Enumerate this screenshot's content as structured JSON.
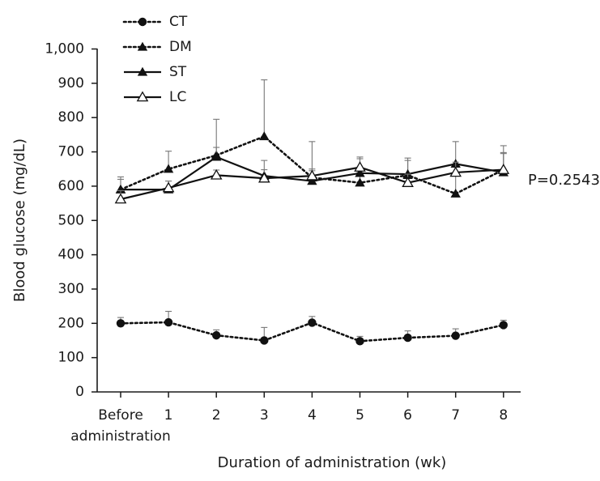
{
  "chart_data": {
    "type": "line",
    "title": "",
    "xlabel": "Duration of administration (wk)",
    "ylabel": "Blood glucose (mg/dL)",
    "ylim": [
      0,
      1000
    ],
    "yticks": [
      0,
      100,
      200,
      300,
      400,
      500,
      600,
      700,
      800,
      900,
      1000
    ],
    "ytick_labels": [
      "0",
      "100",
      "200",
      "300",
      "400",
      "500",
      "600",
      "700",
      "800",
      "900",
      "1,000"
    ],
    "categories": [
      "Before administration",
      "1",
      "2",
      "3",
      "4",
      "5",
      "6",
      "7",
      "8"
    ],
    "category_label_lines": [
      [
        "Before",
        "administration"
      ],
      [
        "1"
      ],
      [
        "2"
      ],
      [
        "3"
      ],
      [
        "4"
      ],
      [
        "5"
      ],
      [
        "6"
      ],
      [
        "7"
      ],
      [
        "8"
      ]
    ],
    "grid": false,
    "legend_position": "top-left",
    "annotation": "P=0.2543",
    "series": [
      {
        "name": "CT",
        "line_style": "dotted",
        "marker": "filled-circle",
        "values": [
          200,
          203,
          165,
          150,
          202,
          148,
          158,
          164,
          195
        ],
        "error": [
          17,
          32,
          16,
          38,
          18,
          14,
          20,
          20,
          14
        ]
      },
      {
        "name": "DM",
        "line_style": "dotted",
        "marker": "filled-triangle",
        "values": [
          590,
          650,
          690,
          745,
          625,
          610,
          632,
          578,
          648
        ],
        "error": [
          37,
          52,
          105,
          165,
          105,
          30,
          50,
          55,
          50
        ]
      },
      {
        "name": "ST",
        "line_style": "solid",
        "marker": "filled-triangle",
        "values": [
          590,
          590,
          685,
          630,
          615,
          638,
          635,
          665,
          640
        ],
        "error": [
          30,
          25,
          28,
          45,
          30,
          42,
          40,
          65,
          55
        ]
      },
      {
        "name": "LC",
        "line_style": "solid",
        "marker": "open-triangle",
        "values": [
          562,
          595,
          632,
          623,
          630,
          655,
          610,
          640,
          648
        ],
        "error": [
          25,
          20,
          15,
          25,
          20,
          30,
          25,
          30,
          70
        ]
      }
    ]
  }
}
